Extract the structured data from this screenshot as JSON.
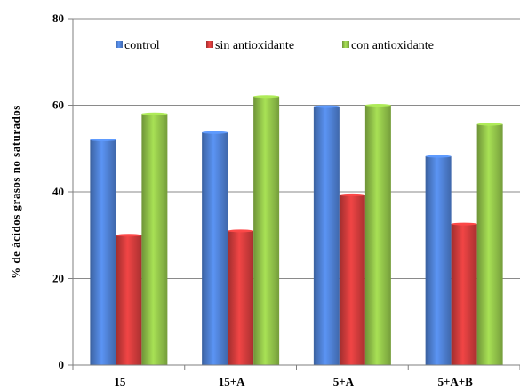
{
  "chart_data": {
    "type": "bar",
    "categories": [
      "15",
      "15+A",
      "5+A",
      "5+A+B"
    ],
    "series": [
      {
        "name": "control",
        "values": [
          52,
          53.7,
          59.7,
          48.2
        ],
        "color": "#4f81d4"
      },
      {
        "name": "sin antioxidante",
        "values": [
          30,
          31,
          39.3,
          32.6
        ],
        "color": "#d23c3c"
      },
      {
        "name": "con antioxidante",
        "values": [
          58,
          62,
          60,
          55.6
        ],
        "color": "#92c44a"
      }
    ],
    "ylabel": "% de ácidos grasos no saturados",
    "ylim": [
      0,
      80
    ],
    "yticks": [
      0,
      20,
      40,
      60,
      80
    ],
    "grid": true,
    "legend_position": "top"
  }
}
